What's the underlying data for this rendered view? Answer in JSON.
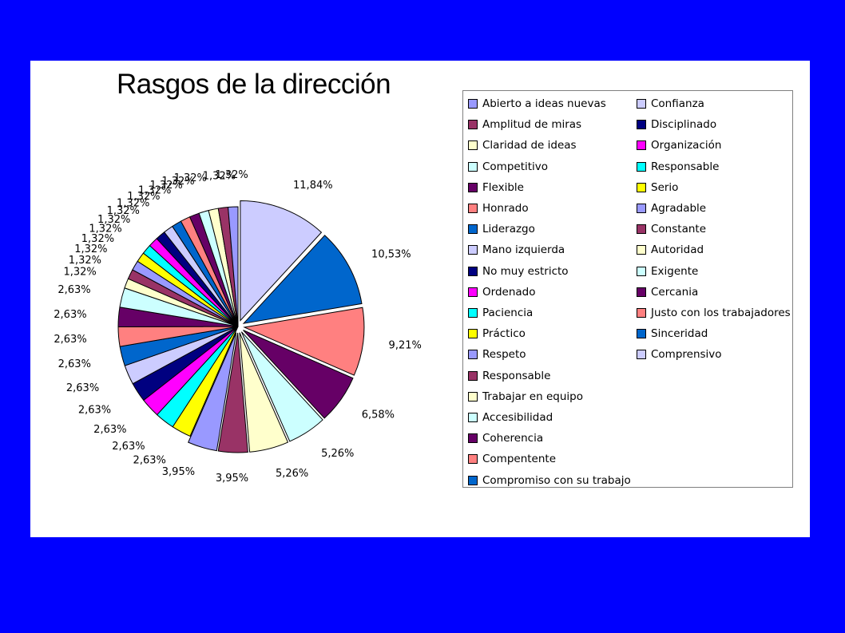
{
  "chart_data": {
    "type": "pie",
    "title": "Rasgos de la dirección",
    "legend_position": "right",
    "slices": [
      {
        "label": "Confianza",
        "value": 11.84,
        "value_label": "11,84%",
        "color": "#CCCCFF"
      },
      {
        "label": "Sinceridad",
        "value": 10.53,
        "value_label": "10,53%",
        "color": "#0066CC"
      },
      {
        "label": "Justo con los trabajadores",
        "value": 9.21,
        "value_label": "9,21%",
        "color": "#FF8080"
      },
      {
        "label": "Cercania",
        "value": 6.58,
        "value_label": "6,58%",
        "color": "#660066"
      },
      {
        "label": "Exigente",
        "value": 5.26,
        "value_label": "5,26%",
        "color": "#CCFFFF"
      },
      {
        "label": "Autoridad",
        "value": 5.26,
        "value_label": "5,26%",
        "color": "#FFFFCC"
      },
      {
        "label": "Constante",
        "value": 3.95,
        "value_label": "3,95%",
        "color": "#993366"
      },
      {
        "label": "Agradable",
        "value": 3.95,
        "value_label": "3,95%",
        "color": "#9999FF"
      },
      {
        "label": "Serio",
        "value": 2.63,
        "value_label": "2,63%",
        "color": "#FFFF00"
      },
      {
        "label": "Responsable",
        "value": 2.63,
        "value_label": "2,63%",
        "color": "#00FFFF"
      },
      {
        "label": "Organización",
        "value": 2.63,
        "value_label": "2,63%",
        "color": "#FF00FF"
      },
      {
        "label": "Disciplinado",
        "value": 2.63,
        "value_label": "2,63%",
        "color": "#000080"
      },
      {
        "label": "Comprensivo",
        "value": 2.63,
        "value_label": "2,63%",
        "color": "#CCCCFF"
      },
      {
        "label": "Compromiso con su trabajo",
        "value": 2.63,
        "value_label": "2,63%",
        "color": "#0066CC"
      },
      {
        "label": "Compentente",
        "value": 2.63,
        "value_label": "2,63%",
        "color": "#FF8080"
      },
      {
        "label": "Coherencia",
        "value": 2.63,
        "value_label": "2,63%",
        "color": "#660066"
      },
      {
        "label": "Accesibilidad",
        "value": 2.63,
        "value_label": "2,63%",
        "color": "#CCFFFF"
      },
      {
        "label": "Trabajar en equipo",
        "value": 1.32,
        "value_label": "1,32%",
        "color": "#FFFFCC"
      },
      {
        "label": "Responsable",
        "value": 1.32,
        "value_label": "1,32%",
        "color": "#993366"
      },
      {
        "label": "Respeto",
        "value": 1.32,
        "value_label": "1,32%",
        "color": "#9999FF"
      },
      {
        "label": "Práctico",
        "value": 1.32,
        "value_label": "1,32%",
        "color": "#FFFF00"
      },
      {
        "label": "Paciencia",
        "value": 1.32,
        "value_label": "1,32%",
        "color": "#00FFFF"
      },
      {
        "label": "Ordenado",
        "value": 1.32,
        "value_label": "1,32%",
        "color": "#FF00FF"
      },
      {
        "label": "No muy estricto",
        "value": 1.32,
        "value_label": "1,32%",
        "color": "#000080"
      },
      {
        "label": "Mano izquierda",
        "value": 1.32,
        "value_label": "1,32%",
        "color": "#CCCCFF"
      },
      {
        "label": "Liderazgo",
        "value": 1.32,
        "value_label": "1,32%",
        "color": "#0066CC"
      },
      {
        "label": "Honrado",
        "value": 1.32,
        "value_label": "1,32%",
        "color": "#FF8080"
      },
      {
        "label": "Flexible",
        "value": 1.32,
        "value_label": "1,32%",
        "color": "#660066"
      },
      {
        "label": "Competitivo",
        "value": 1.32,
        "value_label": "1,32%",
        "color": "#CCFFFF"
      },
      {
        "label": "Claridad de ideas",
        "value": 1.32,
        "value_label": "1,32%",
        "color": "#FFFFCC"
      },
      {
        "label": "Amplitud de miras",
        "value": 1.32,
        "value_label": "1,32%",
        "color": "#993366"
      },
      {
        "label": "Abierto a ideas nuevas",
        "value": 1.32,
        "value_label": "1,32%",
        "color": "#9999FF"
      }
    ],
    "legend": {
      "left_column": [
        {
          "label": "Abierto a ideas nuevas",
          "color": "#9999FF"
        },
        {
          "label": "Amplitud de miras",
          "color": "#993366"
        },
        {
          "label": "Claridad de ideas",
          "color": "#FFFFCC"
        },
        {
          "label": "Competitivo",
          "color": "#CCFFFF"
        },
        {
          "label": "Flexible",
          "color": "#660066"
        },
        {
          "label": "Honrado",
          "color": "#FF8080"
        },
        {
          "label": "Liderazgo",
          "color": "#0066CC"
        },
        {
          "label": "Mano izquierda",
          "color": "#CCCCFF"
        },
        {
          "label": "No muy estricto",
          "color": "#000080"
        },
        {
          "label": "Ordenado",
          "color": "#FF00FF"
        },
        {
          "label": "Paciencia",
          "color": "#00FFFF"
        },
        {
          "label": "Práctico",
          "color": "#FFFF00"
        },
        {
          "label": "Respeto",
          "color": "#9999FF"
        },
        {
          "label": "Responsable",
          "color": "#993366"
        },
        {
          "label": "Trabajar en equipo",
          "color": "#FFFFCC"
        },
        {
          "label": "Accesibilidad",
          "color": "#CCFFFF"
        },
        {
          "label": "Coherencia",
          "color": "#660066"
        },
        {
          "label": "Compentente",
          "color": "#FF8080"
        },
        {
          "label": "Compromiso con su trabajo",
          "color": "#0066CC"
        }
      ],
      "right_column": [
        {
          "label": "Confianza",
          "color": "#CCCCFF"
        },
        {
          "label": "Disciplinado",
          "color": "#000080"
        },
        {
          "label": "Organización",
          "color": "#FF00FF"
        },
        {
          "label": "Responsable",
          "color": "#00FFFF"
        },
        {
          "label": "Serio",
          "color": "#FFFF00"
        },
        {
          "label": "Agradable",
          "color": "#9999FF"
        },
        {
          "label": "Constante",
          "color": "#993366"
        },
        {
          "label": "Autoridad",
          "color": "#FFFFCC"
        },
        {
          "label": "Exigente",
          "color": "#CCFFFF"
        },
        {
          "label": "Cercania",
          "color": "#660066"
        },
        {
          "label": "Justo con los trabajadores",
          "color": "#FF8080"
        },
        {
          "label": "Sinceridad",
          "color": "#0066CC"
        },
        {
          "label": "Comprensivo",
          "color": "#CCCCFF"
        }
      ]
    }
  }
}
